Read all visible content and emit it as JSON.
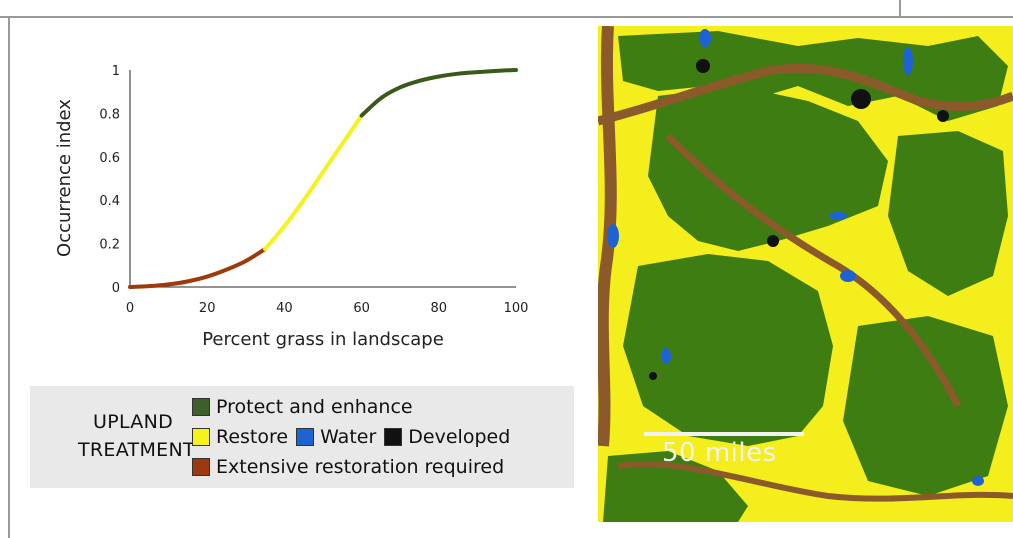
{
  "chart_data": {
    "type": "line",
    "xlabel": "Percent grass in landscape",
    "ylabel": "Occurrence index",
    "xlim": [
      0,
      100
    ],
    "ylim": [
      0,
      1
    ],
    "xticks": [
      "0",
      "20",
      "40",
      "60",
      "80",
      "100"
    ],
    "yticks": [
      "0",
      "0.2",
      "0.4",
      "0.6",
      "0.8",
      "1"
    ],
    "grid": false,
    "series": [
      {
        "color": "#9c3a0c",
        "x": [
          0,
          5,
          10,
          15,
          20,
          25,
          30,
          35
        ],
        "y": [
          0.0,
          0.004,
          0.012,
          0.026,
          0.048,
          0.08,
          0.12,
          0.175
        ]
      },
      {
        "color": "#f6f21e",
        "x": [
          35,
          40,
          45,
          50,
          55,
          60
        ],
        "y": [
          0.175,
          0.28,
          0.4,
          0.53,
          0.66,
          0.79
        ]
      },
      {
        "color": "#3a5a1a",
        "x": [
          60,
          65,
          70,
          75,
          80,
          85,
          90,
          95,
          100
        ],
        "y": [
          0.79,
          0.87,
          0.92,
          0.95,
          0.97,
          0.983,
          0.99,
          0.996,
          1.0
        ]
      }
    ]
  },
  "legend": {
    "title_line1": "UPLAND",
    "title_line2": "TREATMENT",
    "protect_label": "Protect and enhance",
    "restore_label": "Restore",
    "water_label": "Water",
    "developed_label": "Developed",
    "extensive_label": "Extensive restoration required",
    "colors": {
      "protect": "#3e5f2a",
      "restore": "#f5f21c",
      "water": "#1d63d6",
      "developed": "#111111",
      "extensive": "#9b3a10"
    }
  },
  "map": {
    "scale_label": "50 miles",
    "colors": {
      "grass": "#3e7d12",
      "restore": "#f4ee1c",
      "river": "#8b5a2b",
      "water": "#1d63d6",
      "developed": "#111111"
    }
  }
}
